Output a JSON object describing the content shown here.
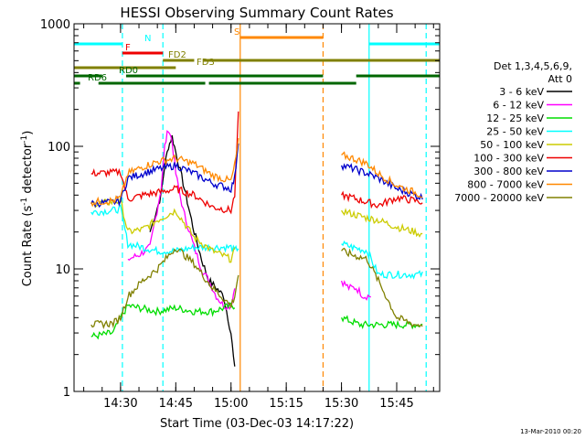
{
  "chart_data": {
    "type": "line",
    "title": "HESSI Observing Summary Count Rates",
    "xlabel": "Start Time (03-Dec-03 14:17:22)",
    "ylabel": "Count Rate (s⁻¹ detector⁻¹)",
    "ylabel_main": "Count Rate (s",
    "ylabel_mid": " detector",
    "ylabel_end": ")",
    "ylabel_sup": "-1",
    "y_scale": "log",
    "ylim": [
      1,
      1000
    ],
    "xlim": [
      "14:17:22",
      "15:56:40"
    ],
    "x_ticks": [
      "14:30",
      "14:45",
      "15:00",
      "15:15",
      "15:30",
      "15:45"
    ],
    "y_ticks": [
      "1",
      "10",
      "100",
      "1000"
    ],
    "grid": false,
    "legend_position": "right",
    "legend_header": [
      "Det 1,3,4,5,6,9,",
      "Att 0"
    ],
    "footer_date": "13-Mar-2010 00:20",
    "colors": {
      "3 - 6 keV": "#000000",
      "6 - 12 keV": "#ff00ff",
      "12 - 25 keV": "#00dd00",
      "25 - 50 keV": "#00ffff",
      "50 - 100 keV": "#cccc00",
      "100 - 300 keV": "#ee0000",
      "300 - 800 keV": "#0000cc",
      "800 - 7000 keV": "#ff8800",
      "7000 - 20000 keV": "#808000"
    },
    "series": [
      {
        "name": "3 - 6 keV",
        "x": [
          "14:22",
          "14:30",
          "14:32",
          "14:35",
          "14:38",
          "14:41",
          "14:42",
          "14:43",
          "14:44",
          "14:45",
          "14:47",
          "14:50",
          "14:52",
          "14:54",
          "14:56",
          "14:58",
          "15:00",
          "15:01",
          "15:02",
          "15:36",
          "15:38",
          "15:40",
          "15:42",
          "15:44",
          "15:47",
          "15:50",
          "15:52"
        ],
        "y": [
          null,
          null,
          null,
          null,
          20,
          40,
          70,
          100,
          120,
          90,
          50,
          20,
          12,
          8,
          7,
          6,
          3,
          1.5,
          null,
          null,
          null,
          null,
          null,
          null,
          null,
          null,
          null
        ]
      },
      {
        "name": "6 - 12 keV",
        "x": [
          "14:32",
          "14:35",
          "14:38",
          "14:41",
          "14:42",
          "14:43",
          "14:44",
          "14:45",
          "14:47",
          "14:50",
          "14:52",
          "14:54",
          "14:56",
          "14:58",
          "15:00",
          "15:01",
          "15:30",
          "15:32",
          "15:34",
          "15:36",
          "15:38"
        ],
        "y": [
          12,
          13,
          15,
          45,
          100,
          140,
          110,
          60,
          30,
          15,
          10,
          8,
          6,
          5,
          5,
          7,
          8,
          7,
          7,
          6,
          6
        ]
      },
      {
        "name": "12 - 25 keV",
        "x": [
          "14:22",
          "14:28",
          "14:30",
          "14:32",
          "14:35",
          "14:40",
          "14:45",
          "14:50",
          "14:55",
          "15:00",
          "15:01",
          "15:30",
          "15:35",
          "15:38",
          "15:42",
          "15:46",
          "15:50",
          "15:52"
        ],
        "y": [
          2.8,
          3,
          4,
          5,
          4.8,
          4.5,
          4.8,
          4.5,
          4.5,
          5,
          5,
          4,
          3.5,
          3.5,
          3.5,
          3.5,
          3.5,
          3.5
        ]
      },
      {
        "name": "25 - 50 keV",
        "x": [
          "14:22",
          "14:28",
          "14:30",
          "14:32",
          "14:36",
          "14:40",
          "14:45",
          "14:50",
          "14:55",
          "15:00",
          "15:01",
          "15:02",
          "15:30",
          "15:33",
          "15:37",
          "15:40",
          "15:45",
          "15:50",
          "15:52"
        ],
        "y": [
          29,
          30,
          31,
          16,
          15,
          14,
          14,
          15,
          15,
          15,
          14,
          15,
          16,
          15,
          14,
          9,
          9,
          9,
          9
        ]
      },
      {
        "name": "50 - 100 keV",
        "x": [
          "14:22",
          "14:28",
          "14:30",
          "14:32",
          "14:36",
          "14:40",
          "14:45",
          "14:50",
          "14:55",
          "15:00",
          "15:01",
          "15:30",
          "15:33",
          "15:37",
          "15:40",
          "15:45",
          "15:50",
          "15:52"
        ],
        "y": [
          34,
          35,
          36,
          20,
          21,
          25,
          30,
          18,
          14,
          12,
          14,
          30,
          28,
          26,
          25,
          22,
          20,
          19
        ]
      },
      {
        "name": "100 - 300 keV",
        "x": [
          "14:22",
          "14:28",
          "14:30",
          "14:32",
          "14:36",
          "14:40",
          "14:45",
          "14:50",
          "14:55",
          "15:00",
          "15:01",
          "15:02",
          "15:30",
          "15:33",
          "15:37",
          "15:40",
          "15:45",
          "15:50",
          "15:52"
        ],
        "y": [
          60,
          61,
          62,
          37,
          40,
          42,
          45,
          40,
          32,
          30,
          40,
          180,
          40,
          38,
          35,
          33,
          38,
          36,
          35
        ]
      },
      {
        "name": "300 - 800 keV",
        "x": [
          "14:22",
          "14:28",
          "14:30",
          "14:32",
          "14:36",
          "14:40",
          "14:45",
          "14:50",
          "14:55",
          "15:00",
          "15:01",
          "15:02",
          "15:30",
          "15:33",
          "15:37",
          "15:40",
          "15:45",
          "15:50",
          "15:52"
        ],
        "y": [
          34,
          35,
          36,
          55,
          60,
          65,
          70,
          60,
          50,
          45,
          55,
          110,
          70,
          66,
          60,
          55,
          45,
          40,
          38
        ]
      },
      {
        "name": "800 - 7000 keV",
        "x": [
          "14:22",
          "14:28",
          "14:30",
          "14:32",
          "14:36",
          "14:40",
          "14:45",
          "14:50",
          "14:55",
          "15:00",
          "15:01",
          "15:02",
          "15:30",
          "15:33",
          "15:37",
          "15:40",
          "15:45",
          "15:50",
          "15:52"
        ],
        "y": [
          35,
          36,
          38,
          60,
          68,
          75,
          80,
          72,
          58,
          52,
          70,
          110,
          85,
          80,
          72,
          60,
          48,
          42,
          40
        ]
      },
      {
        "name": "7000 - 20000 keV",
        "x": [
          "14:22",
          "14:28",
          "14:30",
          "14:32",
          "14:36",
          "14:40",
          "14:45",
          "14:50",
          "14:55",
          "15:00",
          "15:01",
          "15:02",
          "15:30",
          "15:33",
          "15:37",
          "15:40",
          "15:45",
          "15:50",
          "15:52"
        ],
        "y": [
          3.5,
          3.6,
          4,
          6,
          8,
          10,
          15,
          11,
          7,
          5,
          6,
          9,
          14,
          13,
          12,
          8,
          4,
          3.5,
          3.5
        ]
      }
    ],
    "flag_bars": [
      {
        "label": "N",
        "color": "#00ffff",
        "segments": [
          [
            "14:17:22",
            "14:30:30"
          ],
          [
            "15:37:30",
            "15:56:40"
          ]
        ]
      },
      {
        "label": "S",
        "color": "#ff8800",
        "segments": [
          [
            "15:02:30",
            "15:25:00"
          ]
        ]
      },
      {
        "label": "F",
        "color": "#ee0000",
        "segments": [
          [
            "14:30:30",
            "14:41:30"
          ]
        ]
      },
      {
        "label": "FD2",
        "color": "#808000",
        "segments": [
          [
            "14:41:30",
            "14:50:00"
          ],
          [
            "14:52:30",
            "15:56:40"
          ]
        ]
      },
      {
        "label": "FD3",
        "color": "#808000",
        "segments": [
          [
            "14:17:22",
            "14:45:00"
          ]
        ]
      },
      {
        "label": "RD0",
        "color": "#006600",
        "segments": [
          [
            "14:17:22",
            "14:25:00"
          ],
          [
            "14:31:30",
            "15:25:00"
          ],
          [
            "15:34:00",
            "15:56:40"
          ]
        ]
      },
      {
        "label": "RD6",
        "color": "#006600",
        "segments": [
          [
            "14:17:22",
            "14:19:00"
          ],
          [
            "14:24:00",
            "14:53:00"
          ],
          [
            "14:54:00",
            "15:25:00"
          ],
          [
            "15:25:00",
            "15:34:00"
          ]
        ]
      }
    ],
    "vlines": [
      {
        "x": "14:30:30",
        "color": "#00ffff",
        "style": "dashed"
      },
      {
        "x": "14:41:30",
        "color": "#00ffff",
        "style": "dashed"
      },
      {
        "x": "15:02:30",
        "color": "#ff8800",
        "style": "solid"
      },
      {
        "x": "15:25:00",
        "color": "#ff8800",
        "style": "dashed"
      },
      {
        "x": "15:37:30",
        "color": "#00ffff",
        "style": "solid"
      },
      {
        "x": "15:53:00",
        "color": "#00ffff",
        "style": "dashed"
      }
    ]
  }
}
